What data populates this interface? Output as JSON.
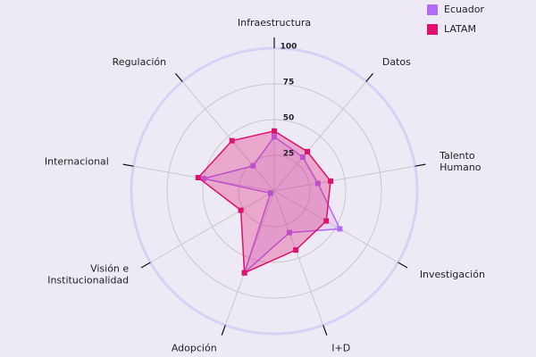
{
  "chart_data": {
    "type": "radar",
    "categories": [
      "Infraestructura",
      "Datos",
      "Talento Humano",
      "Investigación",
      "I+D",
      "Adopción",
      "Visión e Institucionalidad",
      "Internacional",
      "Regulación"
    ],
    "series": [
      {
        "name": "Ecuador",
        "color": "#b36bf5",
        "values": [
          38,
          31,
          31,
          53,
          31,
          61,
          3,
          50,
          23
        ]
      },
      {
        "name": "LATAM",
        "color": "#e0106e",
        "values": [
          42,
          36,
          40,
          42,
          44,
          61,
          27,
          54,
          46
        ]
      }
    ],
    "rlim": [
      0,
      100
    ],
    "rticks": [
      25,
      50,
      75,
      100
    ],
    "grid": true,
    "legend": "top-right"
  }
}
